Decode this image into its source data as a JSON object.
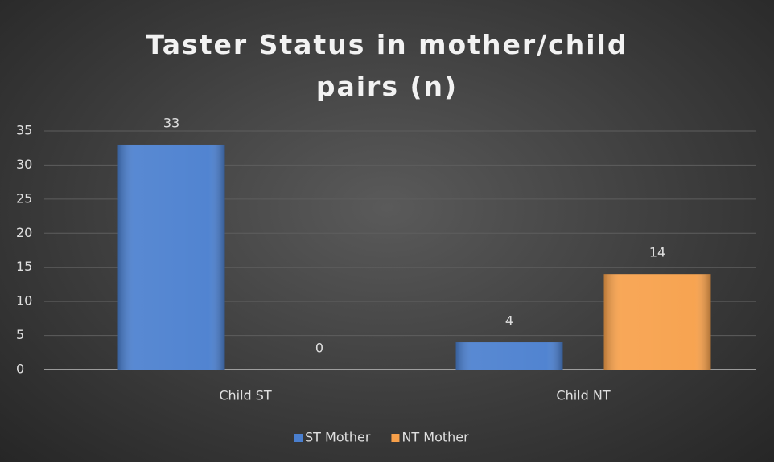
{
  "chart_data": {
    "type": "bar",
    "title": "Taster Status in mother/child pairs (n)",
    "categories": [
      "Child ST",
      "Child NT"
    ],
    "series": [
      {
        "name": "ST Mother",
        "color": "#4a7fcf",
        "values": [
          33,
          4
        ]
      },
      {
        "name": "NT Mother",
        "color": "#f7a04a",
        "values": [
          0,
          14
        ]
      }
    ],
    "ylim": [
      0,
      35
    ],
    "yticks": [
      0,
      5,
      10,
      15,
      20,
      25,
      30,
      35
    ],
    "grid": true,
    "legend": "bottom"
  }
}
